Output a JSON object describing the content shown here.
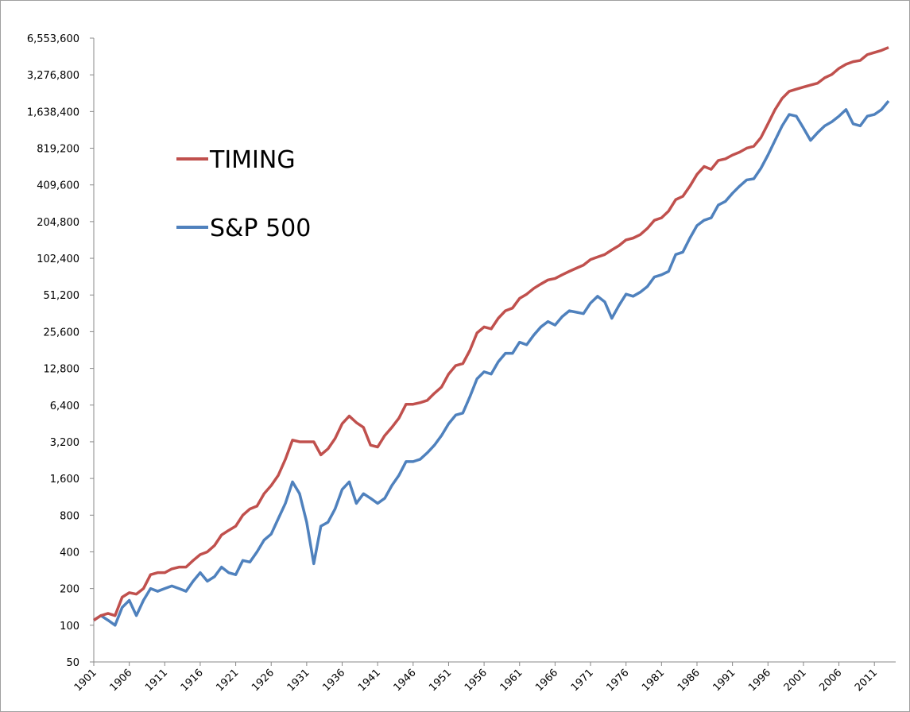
{
  "chart_data": {
    "type": "line",
    "log_y": true,
    "grid": false,
    "legend_position": "upper left",
    "x": [
      1901,
      1902,
      1903,
      1904,
      1905,
      1906,
      1907,
      1908,
      1909,
      1910,
      1911,
      1912,
      1913,
      1914,
      1915,
      1916,
      1917,
      1918,
      1919,
      1920,
      1921,
      1922,
      1923,
      1924,
      1925,
      1926,
      1927,
      1928,
      1929,
      1930,
      1931,
      1932,
      1933,
      1934,
      1935,
      1936,
      1937,
      1938,
      1939,
      1940,
      1941,
      1942,
      1943,
      1944,
      1945,
      1946,
      1947,
      1948,
      1949,
      1950,
      1951,
      1952,
      1953,
      1954,
      1955,
      1956,
      1957,
      1958,
      1959,
      1960,
      1961,
      1962,
      1963,
      1964,
      1965,
      1966,
      1967,
      1968,
      1969,
      1970,
      1971,
      1972,
      1973,
      1974,
      1975,
      1976,
      1977,
      1978,
      1979,
      1980,
      1981,
      1982,
      1983,
      1984,
      1985,
      1986,
      1987,
      1988,
      1989,
      1990,
      1991,
      1992,
      1993,
      1994,
      1995,
      1996,
      1997,
      1998,
      1999,
      2000,
      2001,
      2002,
      2003,
      2004,
      2005,
      2006,
      2007,
      2008,
      2009,
      2010,
      2011,
      2012,
      2013
    ],
    "series": [
      {
        "name": "TIMING",
        "color": "#c0504d",
        "values": [
          110,
          120,
          125,
          120,
          170,
          185,
          180,
          200,
          260,
          270,
          270,
          290,
          300,
          300,
          340,
          380,
          400,
          450,
          550,
          600,
          650,
          800,
          900,
          950,
          1200,
          1400,
          1700,
          2300,
          3300,
          3200,
          3200,
          3200,
          2500,
          2800,
          3400,
          4500,
          5200,
          4600,
          4200,
          3000,
          2900,
          3600,
          4200,
          5000,
          6500,
          6500,
          6700,
          7000,
          8000,
          9000,
          11500,
          13500,
          14000,
          18000,
          25000,
          28000,
          27000,
          33000,
          38000,
          40000,
          48000,
          52000,
          58000,
          63000,
          68000,
          70000,
          75000,
          80000,
          85000,
          90000,
          100000,
          105000,
          110000,
          120000,
          130000,
          145000,
          150000,
          160000,
          180000,
          210000,
          220000,
          250000,
          310000,
          330000,
          400000,
          500000,
          580000,
          550000,
          650000,
          670000,
          720000,
          760000,
          820000,
          850000,
          1000000,
          1300000,
          1700000,
          2100000,
          2400000,
          2500000,
          2600000,
          2700000,
          2800000,
          3100000,
          3300000,
          3700000,
          4000000,
          4200000,
          4300000,
          4800000,
          5000000,
          5200000,
          5500000
        ]
      },
      {
        "name": "S&P 500",
        "color": "#4f81bd",
        "values": [
          110,
          120,
          110,
          100,
          140,
          160,
          120,
          160,
          200,
          190,
          200,
          210,
          200,
          190,
          230,
          270,
          230,
          250,
          300,
          270,
          260,
          340,
          330,
          400,
          500,
          560,
          750,
          1000,
          1500,
          1200,
          700,
          320,
          650,
          700,
          900,
          1300,
          1500,
          1000,
          1200,
          1100,
          1000,
          1100,
          1400,
          1700,
          2200,
          2200,
          2300,
          2600,
          3000,
          3600,
          4500,
          5300,
          5500,
          7500,
          10500,
          12000,
          11500,
          14500,
          17000,
          17000,
          21000,
          20000,
          24000,
          28000,
          31000,
          29000,
          34000,
          38000,
          37000,
          36000,
          44000,
          50000,
          45000,
          33000,
          42000,
          52000,
          50000,
          54000,
          60000,
          72000,
          75000,
          80000,
          110000,
          115000,
          150000,
          190000,
          210000,
          220000,
          280000,
          300000,
          350000,
          400000,
          450000,
          460000,
          560000,
          720000,
          950000,
          1250000,
          1550000,
          1500000,
          1200000,
          950000,
          1100000,
          1250000,
          1350000,
          1500000,
          1700000,
          1300000,
          1250000,
          1500000,
          1550000,
          1700000,
          2000000
        ]
      }
    ],
    "xlim": [
      1901,
      2014
    ],
    "xticks": [
      1901,
      1906,
      1911,
      1916,
      1921,
      1926,
      1931,
      1936,
      1941,
      1946,
      1951,
      1956,
      1961,
      1966,
      1971,
      1976,
      1981,
      1986,
      1991,
      1996,
      2001,
      2006,
      2011
    ],
    "ylim": [
      50,
      6553600
    ],
    "yticks": [
      50,
      100,
      200,
      400,
      800,
      {
        "value": 1600,
        "label": "1,600"
      },
      {
        "value": 3200,
        "label": "3,200"
      },
      {
        "value": 6400,
        "label": "6,400"
      },
      {
        "value": 12800,
        "label": "12,800"
      },
      {
        "value": 25600,
        "label": "25,600"
      },
      {
        "value": 51200,
        "label": "51,200"
      },
      {
        "value": 102400,
        "label": "102,400"
      },
      {
        "value": 204800,
        "label": "204,800"
      },
      {
        "value": 409600,
        "label": "409,600"
      },
      {
        "value": 819200,
        "label": "819,200"
      },
      {
        "value": 1638400,
        "label": "1,638,400"
      },
      {
        "value": 3276800,
        "label": "3,276,800"
      },
      {
        "value": 6553600,
        "label": "6,553,600"
      }
    ]
  }
}
